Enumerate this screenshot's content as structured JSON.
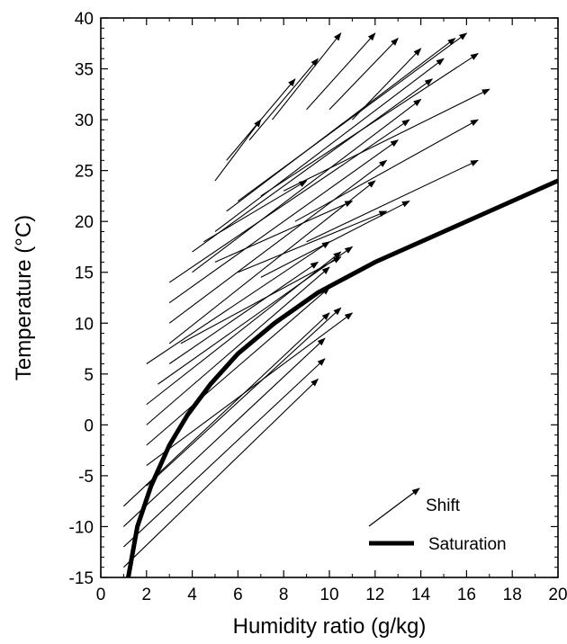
{
  "chart_data": {
    "type": "line",
    "title": "",
    "xlabel": "Humidity ratio  (g/kg)",
    "ylabel": "Temperature  (°C)",
    "xlim": [
      0,
      20
    ],
    "ylim": [
      -15,
      40
    ],
    "xticks": [
      "0",
      "2",
      "4",
      "6",
      "8",
      "10",
      "12",
      "14",
      "16",
      "18",
      "20"
    ],
    "yticks": [
      "-15",
      "-10",
      "-5",
      "0",
      "5",
      "10",
      "15",
      "20",
      "25",
      "30",
      "35",
      "40"
    ],
    "grid": false,
    "legend_position": "bottom-right",
    "series": [
      {
        "name": "Saturation",
        "style": "thick-line",
        "x": [
          1.2,
          1.6,
          2.2,
          3.0,
          3.8,
          4.8,
          6.0,
          7.6,
          9.5,
          12.0,
          15.0,
          20.0
        ],
        "y": [
          -15,
          -10,
          -6,
          -2,
          1,
          4,
          7,
          10,
          13,
          16,
          19,
          24
        ]
      },
      {
        "name": "Shift",
        "style": "arrows",
        "arrows": [
          {
            "x0": 1.0,
            "y0": -14.0,
            "x1": 9.5,
            "y1": 4.5
          },
          {
            "x0": 1.0,
            "y0": -12.0,
            "x1": 9.8,
            "y1": 6.5
          },
          {
            "x0": 1.0,
            "y0": -10.0,
            "x1": 9.8,
            "y1": 8.5
          },
          {
            "x0": 1.0,
            "y0": -8.0,
            "x1": 10.0,
            "y1": 11.0
          },
          {
            "x0": 2.0,
            "y0": -6.0,
            "x1": 10.5,
            "y1": 11.5
          },
          {
            "x0": 2.0,
            "y0": -4.0,
            "x1": 11.0,
            "y1": 11.0
          },
          {
            "x0": 2.0,
            "y0": -2.0,
            "x1": 10.0,
            "y1": 13.5
          },
          {
            "x0": 2.0,
            "y0": 0.0,
            "x1": 10.0,
            "y1": 15.5
          },
          {
            "x0": 2.0,
            "y0": 2.0,
            "x1": 10.5,
            "y1": 17.0
          },
          {
            "x0": 2.5,
            "y0": 4.0,
            "x1": 11.0,
            "y1": 17.5
          },
          {
            "x0": 2.0,
            "y0": 6.0,
            "x1": 10.0,
            "y1": 18.0
          },
          {
            "x0": 3.0,
            "y0": 8.0,
            "x1": 12.0,
            "y1": 24.0
          },
          {
            "x0": 3.0,
            "y0": 10.0,
            "x1": 12.5,
            "y1": 26.0
          },
          {
            "x0": 3.0,
            "y0": 12.0,
            "x1": 13.0,
            "y1": 28.0
          },
          {
            "x0": 3.0,
            "y0": 14.0,
            "x1": 13.5,
            "y1": 30.0
          },
          {
            "x0": 4.0,
            "y0": 15.0,
            "x1": 14.0,
            "y1": 32.0
          },
          {
            "x0": 4.0,
            "y0": 17.0,
            "x1": 14.5,
            "y1": 34.0
          },
          {
            "x0": 5.0,
            "y0": 19.0,
            "x1": 15.0,
            "y1": 36.0
          },
          {
            "x0": 5.5,
            "y0": 21.0,
            "x1": 15.5,
            "y1": 38.0
          },
          {
            "x0": 6.0,
            "y0": 22.0,
            "x1": 16.0,
            "y1": 38.5
          },
          {
            "x0": 7.0,
            "y0": 22.5,
            "x1": 16.5,
            "y1": 36.5
          },
          {
            "x0": 8.0,
            "y0": 23.0,
            "x1": 17.0,
            "y1": 33.0
          },
          {
            "x0": 8.5,
            "y0": 20.0,
            "x1": 16.5,
            "y1": 30.0
          },
          {
            "x0": 9.0,
            "y0": 18.0,
            "x1": 16.5,
            "y1": 26.0
          },
          {
            "x0": 5.0,
            "y0": 24.0,
            "x1": 7.0,
            "y1": 30.0
          },
          {
            "x0": 5.5,
            "y0": 26.0,
            "x1": 8.5,
            "y1": 34.0
          },
          {
            "x0": 6.5,
            "y0": 28.0,
            "x1": 9.5,
            "y1": 36.0
          },
          {
            "x0": 7.5,
            "y0": 30.0,
            "x1": 10.5,
            "y1": 38.5
          },
          {
            "x0": 9.0,
            "y0": 31.0,
            "x1": 12.0,
            "y1": 38.5
          },
          {
            "x0": 10.0,
            "y0": 31.0,
            "x1": 13.0,
            "y1": 38.0
          },
          {
            "x0": 11.0,
            "y0": 30.0,
            "x1": 14.0,
            "y1": 37.0
          },
          {
            "x0": 4.5,
            "y0": 18.0,
            "x1": 9.0,
            "y1": 24.0
          },
          {
            "x0": 5.0,
            "y0": 16.0,
            "x1": 11.0,
            "y1": 22.0
          },
          {
            "x0": 6.0,
            "y0": 15.0,
            "x1": 12.5,
            "y1": 21.0
          },
          {
            "x0": 7.0,
            "y0": 14.5,
            "x1": 13.5,
            "y1": 22.0
          },
          {
            "x0": 3.0,
            "y0": 6.0,
            "x1": 9.5,
            "y1": 16.0
          },
          {
            "x0": 3.5,
            "y0": 8.0,
            "x1": 10.5,
            "y1": 16.5
          }
        ]
      }
    ],
    "legend": [
      {
        "label": "Shift",
        "style": "arrow"
      },
      {
        "label": "Saturation",
        "style": "thick-line"
      }
    ]
  }
}
